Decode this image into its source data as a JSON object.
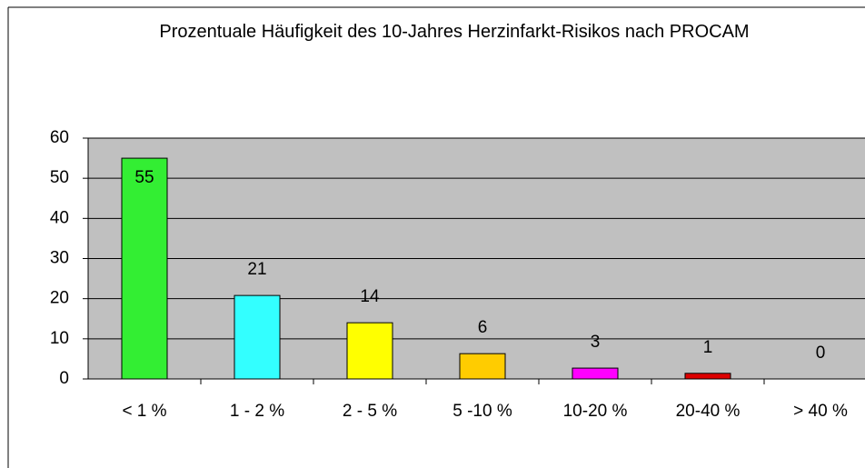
{
  "chart_data": {
    "type": "bar",
    "title": "Prozentuale Häufigkeit des 10-Jahres Herzinfarkt-Risikos nach PROCAM",
    "categories": [
      "< 1 %",
      "1 - 2 %",
      "2 - 5 %",
      "5 -10 %",
      "10-20 %",
      "20-40 %",
      "> 40 %"
    ],
    "values": [
      55,
      20.8,
      14,
      6.3,
      2.7,
      1.4,
      0
    ],
    "value_labels": [
      "55",
      "21",
      "14",
      "6",
      "3",
      "1",
      "0"
    ],
    "colors": [
      "#33ee33",
      "#33ffff",
      "#ffff00",
      "#ffcc00",
      "#ff00ff",
      "#dd0000",
      "#888888"
    ],
    "ylim": [
      0,
      60
    ],
    "yticks": [
      0,
      10,
      20,
      30,
      40,
      50,
      60
    ],
    "grid": true
  }
}
